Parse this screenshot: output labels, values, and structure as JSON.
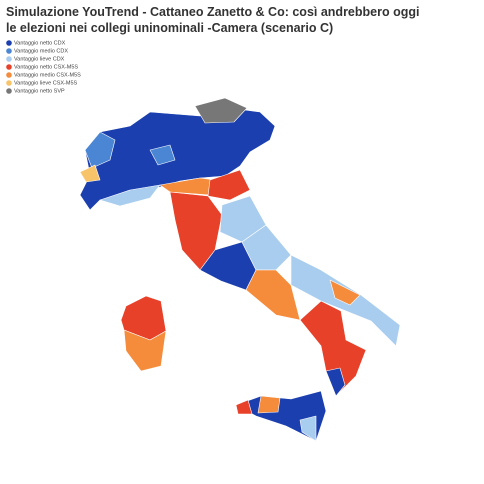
{
  "title_lines": [
    "Simulazione YouTrend - Cattaneo Zanetto & Co: così andrebbero oggi",
    "le elezioni nei collegi uninominali -Camera (scenario C)"
  ],
  "legend": [
    {
      "label": "Vantaggio netto CDX",
      "color": "#1b3fae"
    },
    {
      "label": "Vantaggio medio CDX",
      "color": "#4a86d4"
    },
    {
      "label": "Vantaggio lieve CDX",
      "color": "#a9cdef"
    },
    {
      "label": "Vantaggio netto CSX-M5S",
      "color": "#e8412a"
    },
    {
      "label": "Vantaggio medio CSX-M5S",
      "color": "#f58c3c"
    },
    {
      "label": "Vantaggio lieve CSX-M5S",
      "color": "#f8c46a"
    },
    {
      "label": "Vantaggio netto SVP",
      "color": "#777777"
    }
  ]
}
